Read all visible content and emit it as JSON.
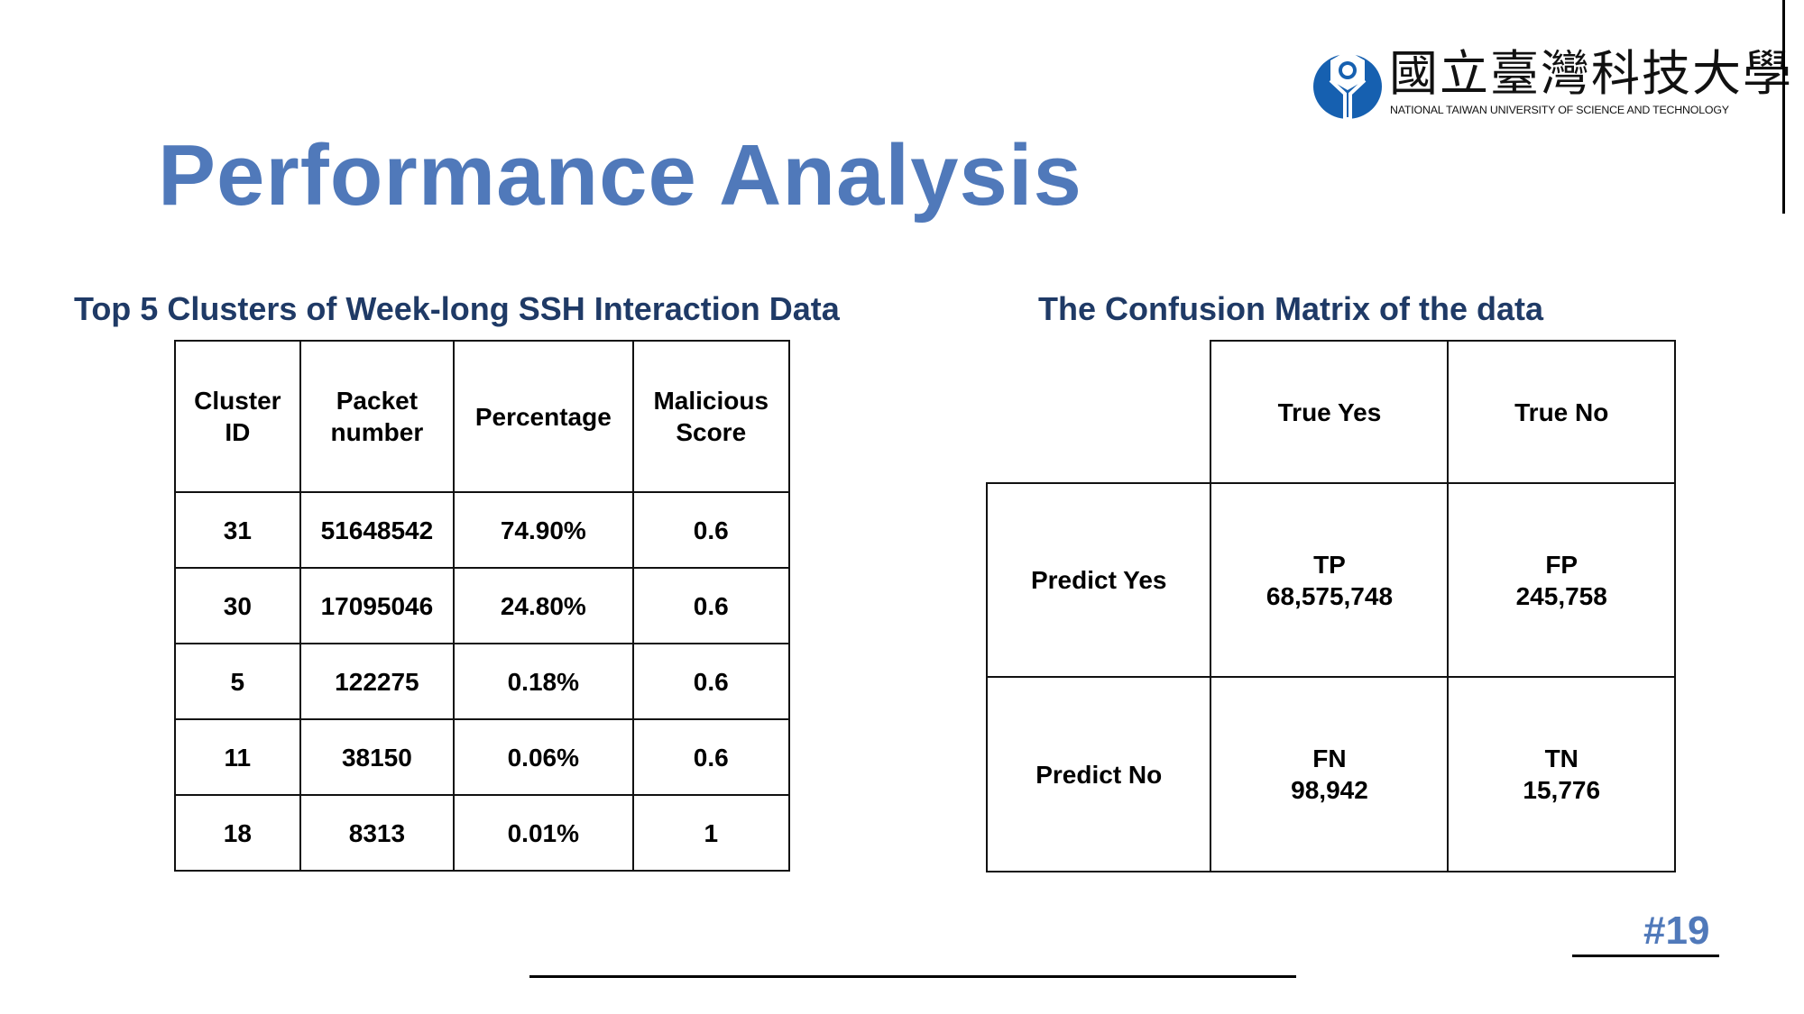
{
  "logo": {
    "name_zh": "國立臺灣科技大學",
    "name_en": "NATIONAL TAIWAN UNIVERSITY OF SCIENCE AND TECHNOLOGY",
    "color": "#1660b0"
  },
  "title": "Performance Analysis",
  "clusters": {
    "heading": "Top 5 Clusters of Week-long SSH Interaction Data",
    "columns": [
      [
        "Cluster",
        "ID"
      ],
      [
        "Packet",
        "number"
      ],
      [
        "Percentage"
      ],
      [
        "Malicious",
        "Score"
      ]
    ],
    "rows": [
      [
        "31",
        "51648542",
        "74.90%",
        "0.6"
      ],
      [
        "30",
        "17095046",
        "24.80%",
        "0.6"
      ],
      [
        "5",
        "122275",
        "0.18%",
        "0.6"
      ],
      [
        "11",
        "38150",
        "0.06%",
        "0.6"
      ],
      [
        "18",
        "8313",
        "0.01%",
        "1"
      ]
    ]
  },
  "matrix": {
    "heading": "The Confusion Matrix of the data",
    "col_headers": [
      "True Yes",
      "True No"
    ],
    "rows": [
      {
        "label": "Predict Yes",
        "cells": [
          [
            "TP",
            "68,575,748"
          ],
          [
            "FP",
            "245,758"
          ]
        ]
      },
      {
        "label": "Predict No",
        "cells": [
          [
            "FN",
            "98,942"
          ],
          [
            "TN",
            "15,776"
          ]
        ]
      }
    ]
  },
  "page_number": "#19",
  "colors": {
    "title": "#5079ba",
    "heading": "#1f3a66"
  }
}
